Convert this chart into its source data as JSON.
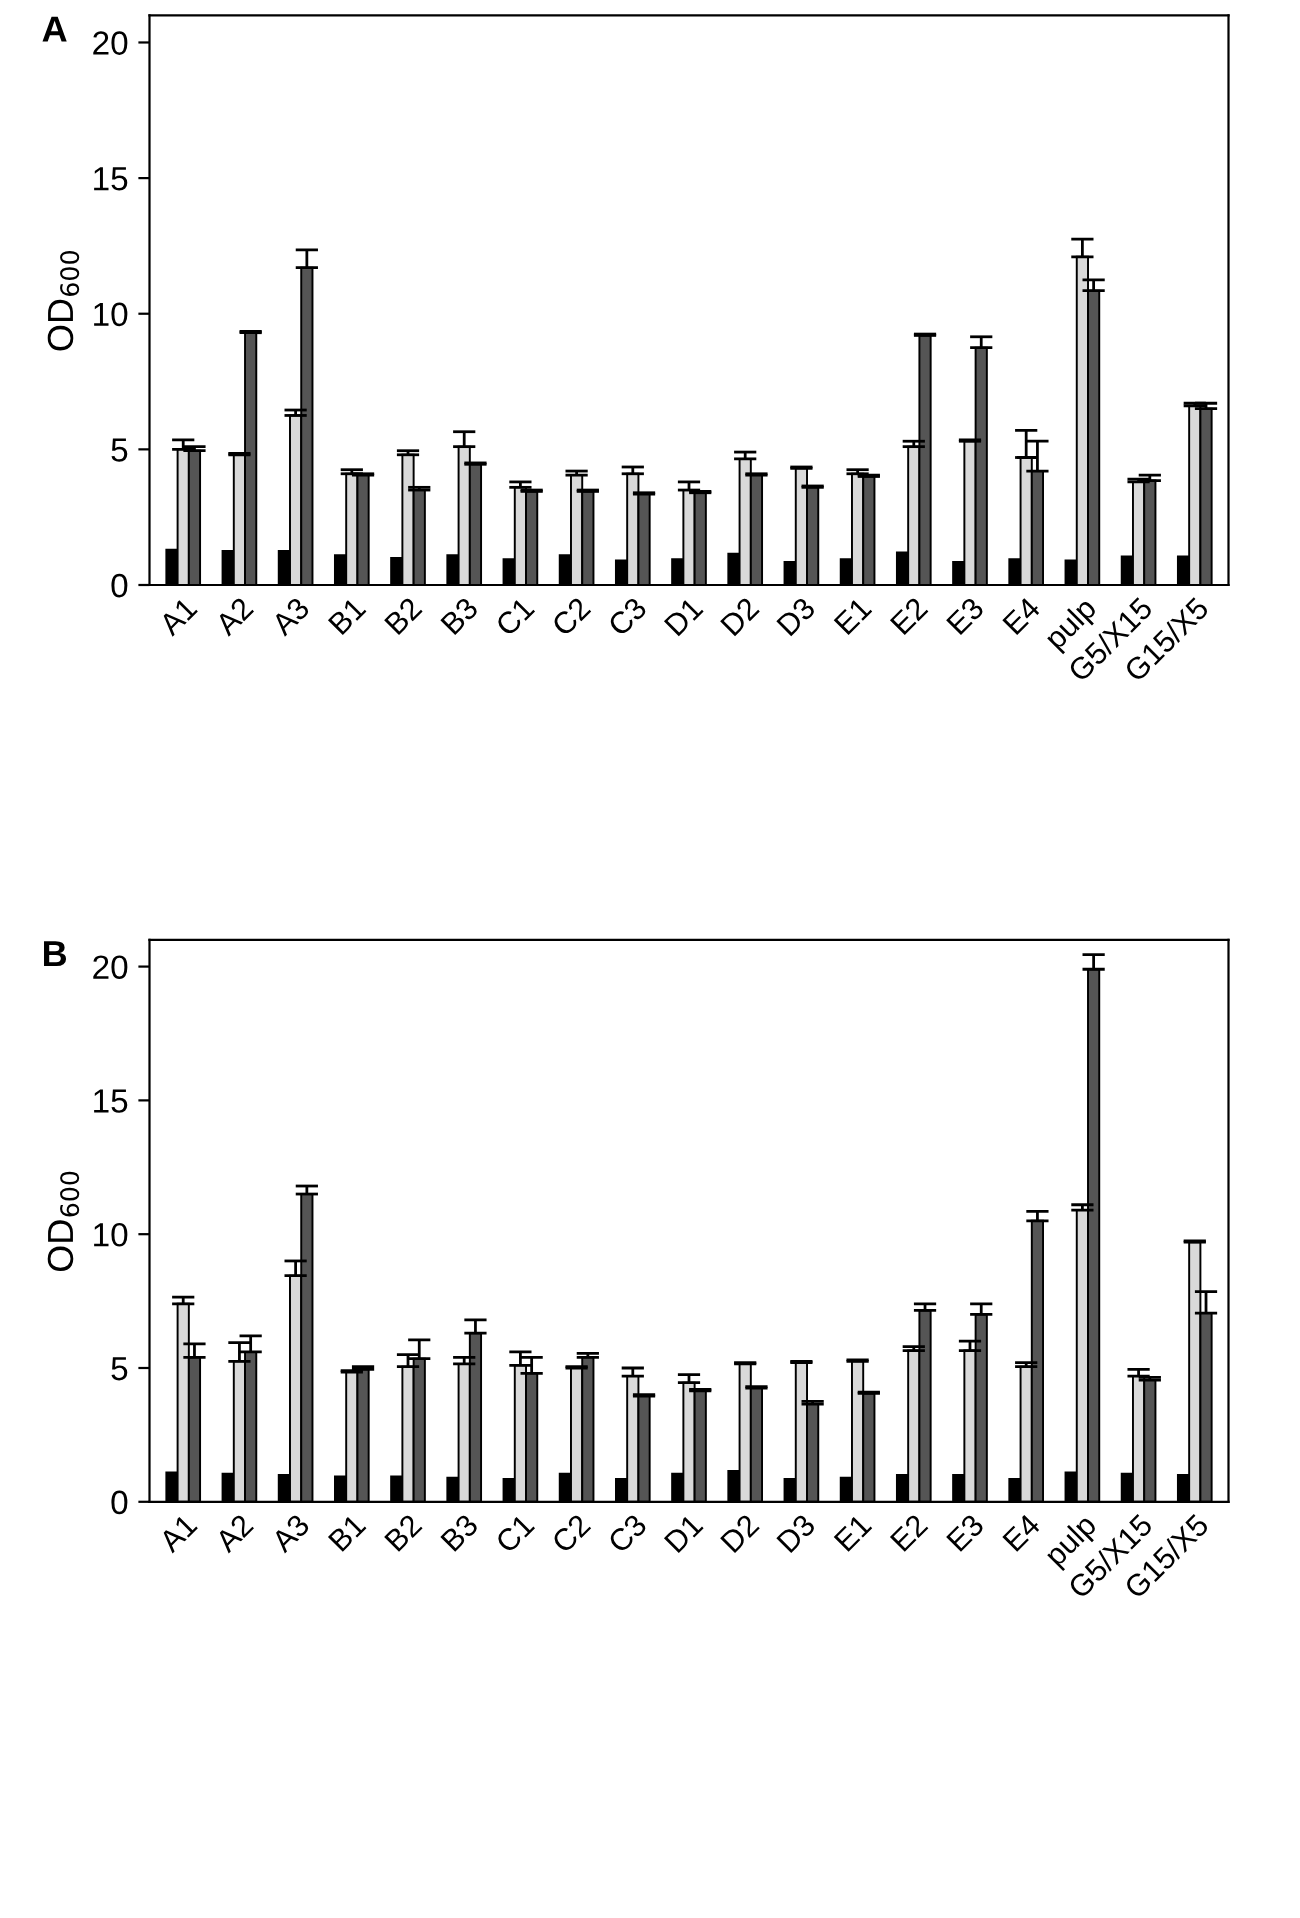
{
  "chart_data": [
    {
      "type": "bar",
      "title": "A",
      "ylabel": "OD$_{600}$",
      "categories": [
        "A1",
        "A2",
        "A3",
        "B1",
        "B2",
        "B3",
        "C1",
        "C2",
        "C3",
        "D1",
        "D2",
        "D3",
        "E1",
        "E2",
        "E3",
        "E4",
        "pulp",
        "G5/X15",
        "G15/X5"
      ],
      "series": [
        {
          "color": "#000000",
          "values": [
            1.3,
            1.25,
            1.25,
            1.1,
            1.0,
            1.1,
            0.95,
            1.1,
            0.9,
            0.95,
            1.15,
            0.85,
            0.95,
            1.2,
            0.85,
            0.95,
            0.9,
            1.05,
            1.05
          ]
        },
        {
          "color": "#d9d9d9",
          "values": [
            5.0,
            4.8,
            6.25,
            4.1,
            4.8,
            5.1,
            3.6,
            4.05,
            4.1,
            3.5,
            4.65,
            4.3,
            4.1,
            5.1,
            5.3,
            4.7,
            12.1,
            3.8,
            6.6
          ],
          "errors": [
            [
              5.0,
              5.35
            ],
            [
              4.8,
              4.85
            ],
            [
              6.25,
              6.45
            ],
            [
              4.1,
              4.25
            ],
            [
              4.8,
              4.95
            ],
            [
              5.1,
              5.65
            ],
            [
              3.6,
              3.8
            ],
            [
              4.05,
              4.2
            ],
            [
              4.1,
              4.35
            ],
            [
              3.5,
              3.8
            ],
            [
              4.65,
              4.9
            ],
            [
              4.3,
              4.35
            ],
            [
              4.1,
              4.25
            ],
            [
              5.1,
              5.3
            ],
            [
              5.3,
              5.35
            ],
            [
              4.7,
              5.7
            ],
            [
              12.1,
              12.75
            ],
            [
              3.8,
              3.9
            ],
            [
              6.6,
              6.7
            ]
          ]
        },
        {
          "color": "#555555",
          "values": [
            4.95,
            9.3,
            11.7,
            4.05,
            3.5,
            4.45,
            3.45,
            3.45,
            3.35,
            3.4,
            4.05,
            3.6,
            4.0,
            9.2,
            8.75,
            4.2,
            10.85,
            3.85,
            6.5
          ],
          "errors": [
            [
              4.95,
              5.1
            ],
            [
              9.3,
              9.35
            ],
            [
              11.7,
              12.35
            ],
            [
              4.05,
              4.1
            ],
            [
              3.5,
              3.6
            ],
            [
              4.45,
              4.5
            ],
            [
              3.45,
              3.5
            ],
            [
              3.45,
              3.5
            ],
            [
              3.35,
              3.4
            ],
            [
              3.4,
              3.45
            ],
            [
              4.05,
              4.1
            ],
            [
              3.6,
              3.65
            ],
            [
              4.0,
              4.05
            ],
            [
              9.2,
              9.25
            ],
            [
              8.75,
              9.15
            ],
            [
              4.2,
              5.3
            ],
            [
              10.85,
              11.25
            ],
            [
              3.85,
              4.05
            ],
            [
              6.5,
              6.7
            ]
          ]
        }
      ],
      "ylim": [
        0,
        21
      ],
      "yticks": [
        0,
        5,
        10,
        15,
        20
      ]
    },
    {
      "type": "bar",
      "title": "B",
      "ylabel": "OD$_{600}$",
      "categories": [
        "A1",
        "A2",
        "A3",
        "B1",
        "B2",
        "B3",
        "C1",
        "C2",
        "C3",
        "D1",
        "D2",
        "D3",
        "E1",
        "E2",
        "E3",
        "E4",
        "pulp",
        "G5/X15",
        "G15/X5"
      ],
      "series": [
        {
          "color": "#000000",
          "values": [
            1.1,
            1.05,
            1.0,
            0.95,
            0.95,
            0.9,
            0.85,
            1.05,
            0.85,
            1.05,
            1.15,
            0.85,
            0.9,
            1.0,
            1.0,
            0.85,
            1.1,
            1.05,
            1.0
          ]
        },
        {
          "color": "#d9d9d9",
          "values": [
            7.4,
            5.25,
            8.45,
            4.85,
            5.05,
            5.15,
            5.1,
            5.0,
            4.7,
            4.45,
            5.15,
            5.2,
            5.25,
            5.65,
            5.65,
            5.05,
            10.9,
            4.7,
            9.7
          ],
          "errors": [
            [
              7.4,
              7.65
            ],
            [
              5.25,
              5.95
            ],
            [
              8.45,
              9.0
            ],
            [
              4.85,
              4.9
            ],
            [
              5.05,
              5.5
            ],
            [
              5.15,
              5.4
            ],
            [
              5.1,
              5.6
            ],
            [
              5.0,
              5.05
            ],
            [
              4.7,
              5.0
            ],
            [
              4.45,
              4.75
            ],
            [
              5.15,
              5.2
            ],
            [
              5.2,
              5.25
            ],
            [
              5.25,
              5.3
            ],
            [
              5.65,
              5.8
            ],
            [
              5.65,
              6.0
            ],
            [
              5.05,
              5.2
            ],
            [
              10.9,
              11.1
            ],
            [
              4.7,
              4.95
            ],
            [
              9.7,
              9.75
            ]
          ]
        },
        {
          "color": "#555555",
          "values": [
            5.4,
            5.6,
            11.5,
            4.95,
            5.35,
            6.3,
            4.8,
            5.4,
            3.95,
            4.15,
            4.25,
            3.65,
            4.05,
            7.15,
            7.0,
            10.5,
            19.9,
            4.55,
            7.05
          ],
          "errors": [
            [
              5.4,
              5.9
            ],
            [
              5.6,
              6.2
            ],
            [
              11.5,
              11.8
            ],
            [
              4.95,
              5.05
            ],
            [
              5.35,
              6.05
            ],
            [
              6.3,
              6.8
            ],
            [
              4.8,
              5.4
            ],
            [
              5.4,
              5.55
            ],
            [
              3.95,
              4.0
            ],
            [
              4.15,
              4.2
            ],
            [
              4.25,
              4.3
            ],
            [
              3.65,
              3.75
            ],
            [
              4.05,
              4.1
            ],
            [
              7.15,
              7.4
            ],
            [
              7.0,
              7.4
            ],
            [
              10.5,
              10.85
            ],
            [
              19.9,
              20.45
            ],
            [
              4.55,
              4.65
            ],
            [
              7.05,
              7.85
            ]
          ]
        }
      ],
      "ylim": [
        0,
        21
      ],
      "yticks": [
        0,
        5,
        10,
        15,
        20
      ]
    }
  ]
}
